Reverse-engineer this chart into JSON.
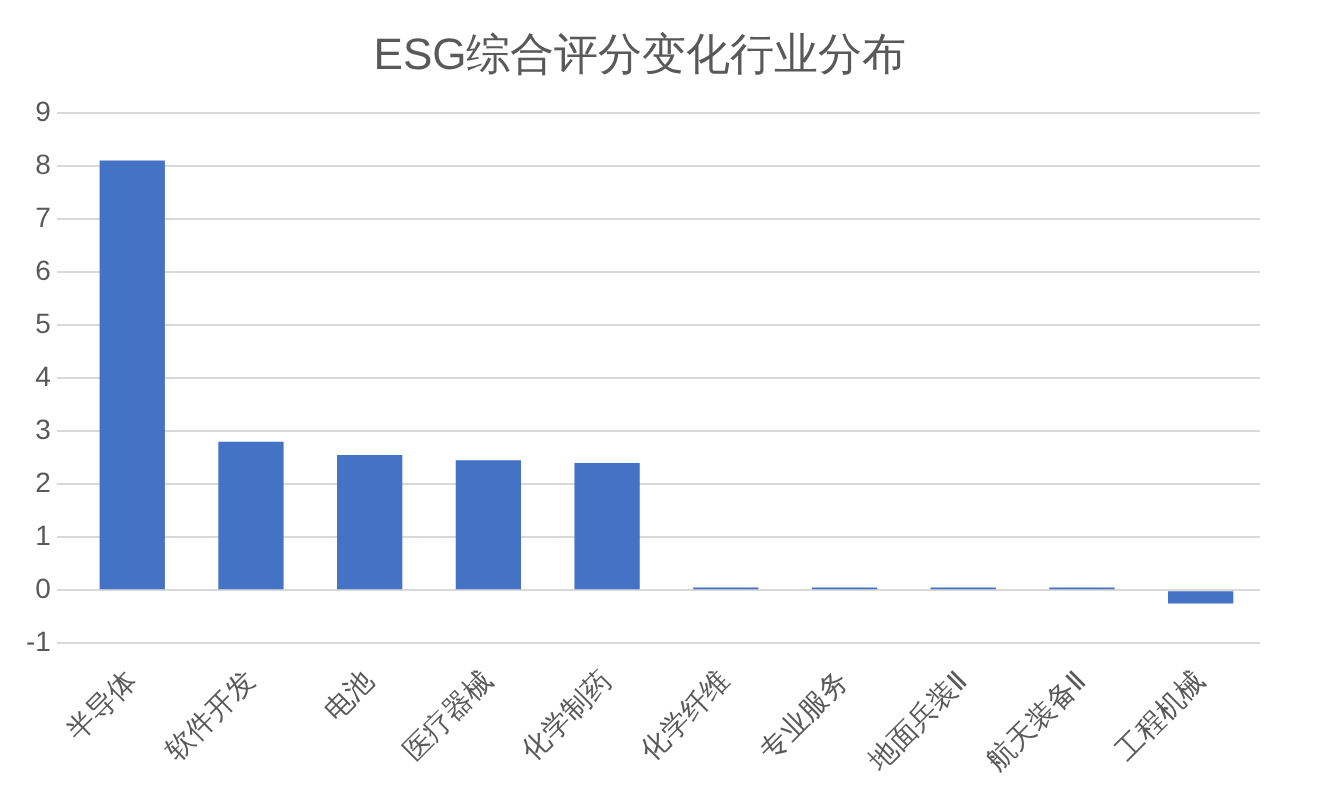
{
  "chart_data": {
    "type": "bar",
    "title": "ESG综合评分变化行业分布",
    "categories": [
      "半导体",
      "软件开发",
      "电池",
      "医疗器械",
      "化学制药",
      "化学纤维",
      "专业服务",
      "地面兵装Ⅱ",
      "航天装备Ⅱ",
      "工程机械"
    ],
    "values": [
      8.1,
      2.8,
      2.55,
      2.45,
      2.4,
      0.05,
      0.05,
      0.05,
      0.05,
      -0.25
    ],
    "color": "#4472c4",
    "ylim": [
      -1,
      9
    ],
    "yticks": [
      -1,
      0,
      1,
      2,
      3,
      4,
      5,
      6,
      7,
      8,
      9
    ],
    "grid": "y"
  }
}
